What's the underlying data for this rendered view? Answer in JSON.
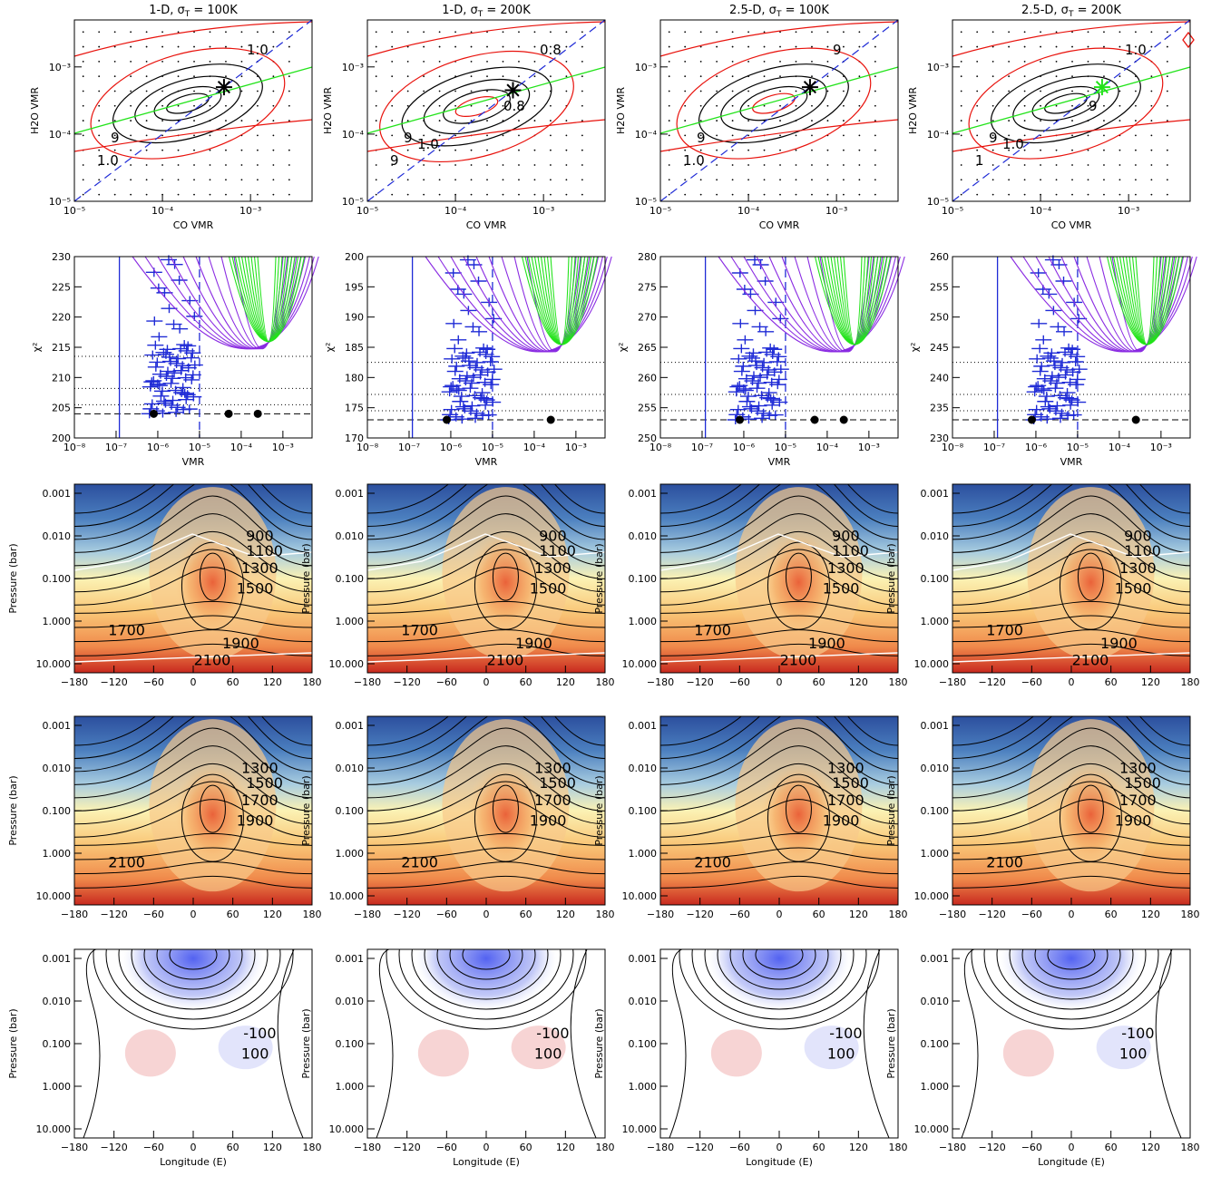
{
  "columns": [
    {
      "title": "1-D, σ",
      "sub": "T",
      "rest": " = 100K"
    },
    {
      "title": "1-D, σ",
      "sub": "T",
      "rest": " = 200K"
    },
    {
      "title": "2.5-D, σ",
      "sub": "T",
      "rest": " = 100K"
    },
    {
      "title": "2.5-D, σ",
      "sub": "T",
      "rest": " = 200K"
    }
  ],
  "colors": {
    "red": "#e8120c",
    "black": "#000000",
    "green": "#22e31a",
    "blue": "#1f2bd6",
    "purple": "#8a2be2",
    "cold": "#2e58a8",
    "hot": "#d23a2a",
    "white_contour": "#ffffff",
    "diff_neg": "#5a5af0",
    "diff_pos": "#f0a0a0"
  },
  "chart_data": [
    {
      "type": "scatter",
      "row": "CO vs H2O VMR",
      "xlabel": "CO VMR",
      "ylabel": "H2O VMR",
      "xlim": [
        1e-05,
        0.005
      ],
      "ylim": [
        1e-05,
        0.005
      ],
      "x_ticks": [
        "10⁻⁵",
        "10⁻⁴",
        "10⁻³"
      ],
      "y_ticks": [
        "10⁻⁵",
        "10⁻⁴",
        "10⁻³"
      ],
      "scale": "log",
      "contour_labels": [
        [
          "1.0",
          "9",
          "1.0"
        ],
        [
          "0.8",
          "9",
          "9",
          "0.8",
          "1.0"
        ],
        [
          "9",
          "9",
          "1.0"
        ],
        [
          "1.0",
          "9",
          "1",
          "9",
          "1.0"
        ]
      ],
      "best_fit": [
        {
          "co": 0.0005,
          "h2o": 0.0005
        },
        {
          "co": 0.00045,
          "h2o": 0.00045
        },
        {
          "co": 0.0005,
          "h2o": 0.0005
        },
        {
          "co": 0.0005,
          "h2o": 0.0005
        }
      ]
    },
    {
      "type": "line",
      "row": "chi-square vs VMR",
      "xlabel": "VMR",
      "ylabel": "χ²",
      "xlim": [
        1e-08,
        0.005
      ],
      "x_ticks": [
        "10⁻⁸",
        "10⁻⁷",
        "10⁻⁶",
        "10⁻⁵",
        "10⁻⁴",
        "10⁻³"
      ],
      "panels": [
        {
          "ylim": [
            200,
            230
          ],
          "y_ticks": [
            200,
            205,
            210,
            215,
            220,
            225,
            230
          ],
          "min_chi2": 204
        },
        {
          "ylim": [
            170,
            200
          ],
          "y_ticks": [
            170,
            175,
            180,
            185,
            190,
            195,
            200
          ],
          "min_chi2": 173
        },
        {
          "ylim": [
            250,
            280
          ],
          "y_ticks": [
            250,
            255,
            260,
            265,
            270,
            275,
            280
          ],
          "min_chi2": 253
        },
        {
          "ylim": [
            230,
            260
          ],
          "y_ticks": [
            230,
            235,
            240,
            245,
            250,
            255,
            260
          ],
          "min_chi2": 233
        }
      ]
    },
    {
      "type": "heatmap",
      "row": "retrieved temperature map",
      "xlabel": "",
      "ylabel": "Pressure (bar)",
      "x_ticks": [
        -180,
        -120,
        -60,
        0,
        60,
        120,
        180
      ],
      "y_ticks": [
        "0.001",
        "0.010",
        "0.100",
        "1.000",
        "10.000"
      ],
      "contour_labels": [
        "900",
        "1100",
        "1300",
        "1500",
        "1700",
        "1900",
        "2100"
      ]
    },
    {
      "type": "heatmap",
      "row": "model temperature map",
      "xlabel": "",
      "ylabel": "Pressure (bar)",
      "x_ticks": [
        -180,
        -120,
        -60,
        0,
        60,
        120,
        180
      ],
      "y_ticks": [
        "0.001",
        "0.010",
        "0.100",
        "1.000",
        "10.000"
      ],
      "contour_labels": [
        "1300",
        "1500",
        "1700",
        "1900",
        "2100"
      ]
    },
    {
      "type": "heatmap",
      "row": "temperature difference",
      "xlabel": "Longitude (E)",
      "ylabel": "Pressure (bar)",
      "x_ticks": [
        -180,
        -120,
        -60,
        0,
        60,
        120,
        180
      ],
      "y_ticks": [
        "0.001",
        "0.010",
        "0.100",
        "1.000",
        "10.000"
      ],
      "contour_labels": [
        "-100",
        "100"
      ]
    }
  ]
}
